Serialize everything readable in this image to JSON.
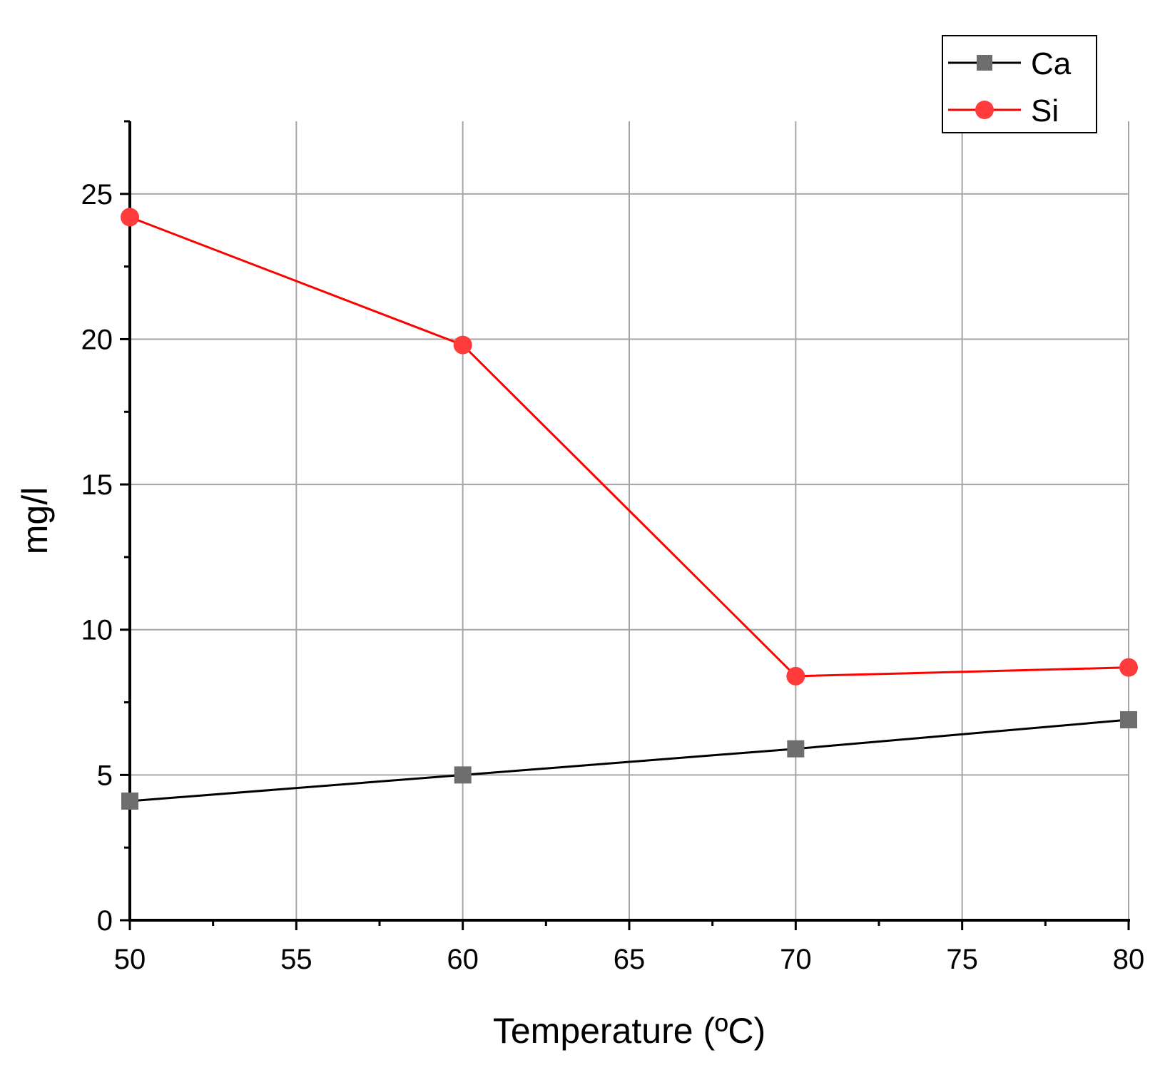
{
  "chart_data": {
    "type": "line",
    "title": "",
    "xlabel": "Temperature (ºC)",
    "ylabel": "mg/l",
    "xlim": [
      50,
      80
    ],
    "ylim": [
      0,
      27.5
    ],
    "x_ticks": [
      50,
      55,
      60,
      65,
      70,
      75,
      80
    ],
    "y_ticks": [
      0,
      5,
      10,
      15,
      20,
      25
    ],
    "grid": true,
    "legend_position": "top-right",
    "series": [
      {
        "name": "Ca",
        "color": "#000000",
        "marker": "square",
        "marker_color": "#6e6e6e",
        "x": [
          50,
          60,
          70,
          80
        ],
        "y": [
          4.1,
          5.0,
          5.9,
          6.9
        ]
      },
      {
        "name": "Si",
        "color": "#ff0000",
        "marker": "circle",
        "marker_color": "#ff3b3b",
        "x": [
          50,
          60,
          70,
          80
        ],
        "y": [
          24.2,
          19.8,
          8.4,
          8.7
        ]
      }
    ]
  }
}
